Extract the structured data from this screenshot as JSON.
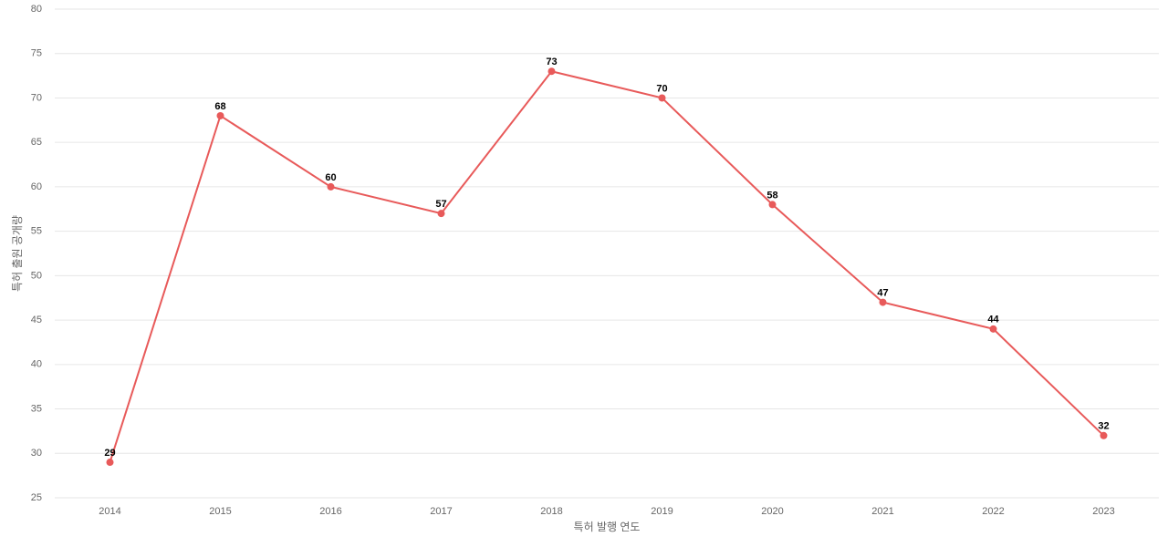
{
  "chart_data": {
    "type": "line",
    "x_label": "특허 발행 연도",
    "y_label": "특허 출원 공개량",
    "categories": [
      "2014",
      "2015",
      "2016",
      "2017",
      "2018",
      "2019",
      "2020",
      "2021",
      "2022",
      "2023"
    ],
    "values": [
      29,
      68,
      60,
      57,
      73,
      70,
      58,
      47,
      44,
      32
    ],
    "color": "#e85a5a",
    "ylim": [
      25,
      80
    ],
    "yticks": [
      25,
      30,
      35,
      40,
      45,
      50,
      55,
      60,
      65,
      70,
      75,
      80
    ],
    "grid": true
  }
}
